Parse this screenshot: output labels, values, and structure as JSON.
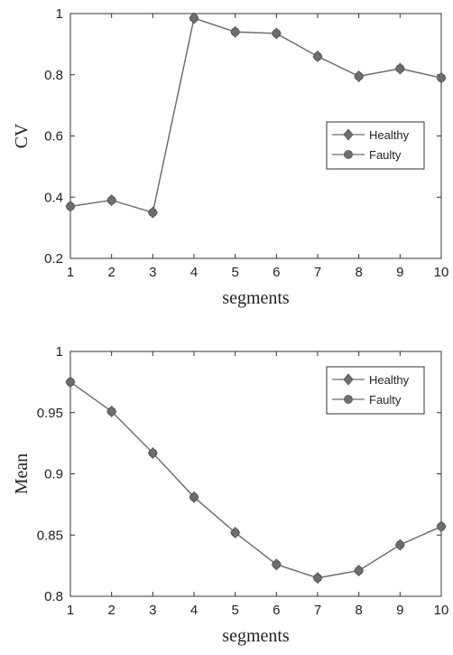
{
  "chart_data": [
    {
      "type": "line",
      "xlabel": "segments",
      "ylabel": "CV",
      "xlim": [
        1,
        10
      ],
      "ylim": [
        0.2,
        1
      ],
      "xticks": [
        "1",
        "2",
        "3",
        "4",
        "5",
        "6",
        "7",
        "8",
        "9",
        "10"
      ],
      "yticks": [
        "0.2",
        "0.4",
        "0.6",
        "0.8",
        "1"
      ],
      "legend_position": "center-right",
      "grid": false,
      "x": [
        1,
        2,
        3,
        4,
        5,
        6,
        7,
        8,
        9,
        10
      ],
      "series": [
        {
          "name": "Healthy",
          "marker": "diamond",
          "color": "#6e6e6e",
          "values": [
            0.37,
            0.39,
            0.35,
            0.985,
            0.94,
            0.935,
            0.86,
            0.795,
            0.82,
            0.79
          ]
        },
        {
          "name": "Faulty",
          "marker": "circle",
          "color": "#6e6e6e",
          "values": [
            0.37,
            0.39,
            0.35,
            0.985,
            0.94,
            0.935,
            0.86,
            0.795,
            0.82,
            0.79
          ]
        }
      ]
    },
    {
      "type": "line",
      "xlabel": "segments",
      "ylabel": "Mean",
      "xlim": [
        1,
        10
      ],
      "ylim": [
        0.8,
        1
      ],
      "xticks": [
        "1",
        "2",
        "3",
        "4",
        "5",
        "6",
        "7",
        "8",
        "9",
        "10"
      ],
      "yticks": [
        "0.8",
        "0.85",
        "0.9",
        "0.95",
        "1"
      ],
      "legend_position": "top-right",
      "grid": false,
      "x": [
        1,
        2,
        3,
        4,
        5,
        6,
        7,
        8,
        9,
        10
      ],
      "series": [
        {
          "name": "Healthy",
          "marker": "diamond",
          "color": "#6e6e6e",
          "values": [
            0.975,
            0.951,
            0.917,
            0.881,
            0.852,
            0.826,
            0.815,
            0.821,
            0.842,
            0.857
          ]
        },
        {
          "name": "Faulty",
          "marker": "circle",
          "color": "#6e6e6e",
          "values": [
            0.975,
            0.951,
            0.917,
            0.881,
            0.852,
            0.826,
            0.815,
            0.821,
            0.842,
            0.857
          ]
        }
      ]
    }
  ]
}
